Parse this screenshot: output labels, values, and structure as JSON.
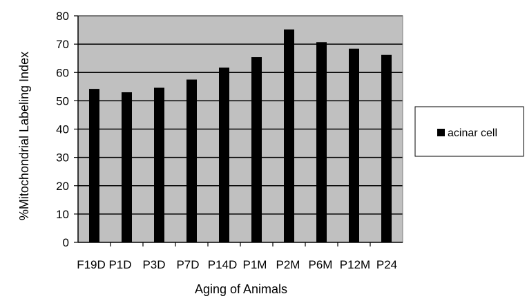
{
  "chart_data": {
    "type": "bar",
    "title": "",
    "xlabel": "Aging of Animals",
    "ylabel": "%Mitochondrial Labeling Index",
    "categories": [
      "F19D",
      "P1D",
      "P3D",
      "P7D",
      "P14D",
      "P1M",
      "P2M",
      "P6M",
      "P12M",
      "P24"
    ],
    "series": [
      {
        "name": "acinar cell",
        "values": [
          54.2,
          53.0,
          54.6,
          57.5,
          61.7,
          65.4,
          75.2,
          70.7,
          68.4,
          66.2
        ]
      }
    ],
    "ylim": [
      0,
      80
    ],
    "yticks": [
      0,
      10,
      20,
      30,
      40,
      50,
      60,
      70,
      80
    ],
    "grid": true,
    "legend_position": "right",
    "colors": {
      "plot_background": "#c0c0c0",
      "bar": "#000000",
      "gridline": "#000000"
    }
  }
}
